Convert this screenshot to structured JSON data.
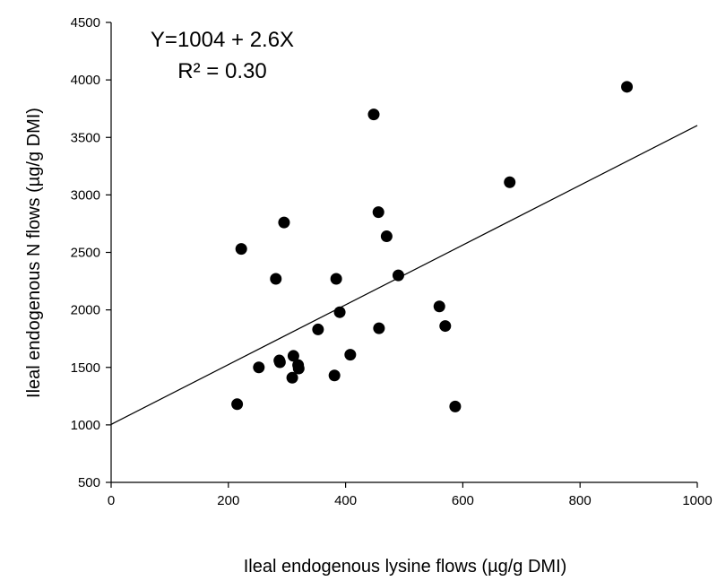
{
  "chart_data": {
    "type": "scatter",
    "title": "",
    "xlabel": "Ileal endogenous lysine flows (µg/g DMI)",
    "ylabel": "Ileal endogenous N flows (µg/g DMI)",
    "xlim": [
      0,
      1000
    ],
    "ylim": [
      500,
      4500
    ],
    "xticks": [
      "0",
      "200",
      "400",
      "600",
      "800",
      "1000"
    ],
    "yticks": [
      "500",
      "1000",
      "1500",
      "2000",
      "2500",
      "3000",
      "3500",
      "4000",
      "4500"
    ],
    "grid": false,
    "annotations": [
      "Y=1004 + 2.6X",
      "R² = 0.30"
    ],
    "regression": {
      "intercept": 1004,
      "slope": 2.6
    },
    "points": [
      {
        "x": 215,
        "y": 1180
      },
      {
        "x": 222,
        "y": 2530
      },
      {
        "x": 252,
        "y": 1500
      },
      {
        "x": 281,
        "y": 2270
      },
      {
        "x": 287,
        "y": 1560
      },
      {
        "x": 288,
        "y": 1545
      },
      {
        "x": 295,
        "y": 2760
      },
      {
        "x": 309,
        "y": 1410
      },
      {
        "x": 311,
        "y": 1600
      },
      {
        "x": 319,
        "y": 1520
      },
      {
        "x": 320,
        "y": 1490
      },
      {
        "x": 353,
        "y": 1830
      },
      {
        "x": 381,
        "y": 1430
      },
      {
        "x": 384,
        "y": 2270
      },
      {
        "x": 390,
        "y": 1980
      },
      {
        "x": 408,
        "y": 1610
      },
      {
        "x": 448,
        "y": 3700
      },
      {
        "x": 456,
        "y": 2850
      },
      {
        "x": 457,
        "y": 1840
      },
      {
        "x": 470,
        "y": 2640
      },
      {
        "x": 490,
        "y": 2300
      },
      {
        "x": 560,
        "y": 2030
      },
      {
        "x": 570,
        "y": 1860
      },
      {
        "x": 587,
        "y": 1160
      },
      {
        "x": 680,
        "y": 3110
      },
      {
        "x": 880,
        "y": 3940
      }
    ]
  }
}
